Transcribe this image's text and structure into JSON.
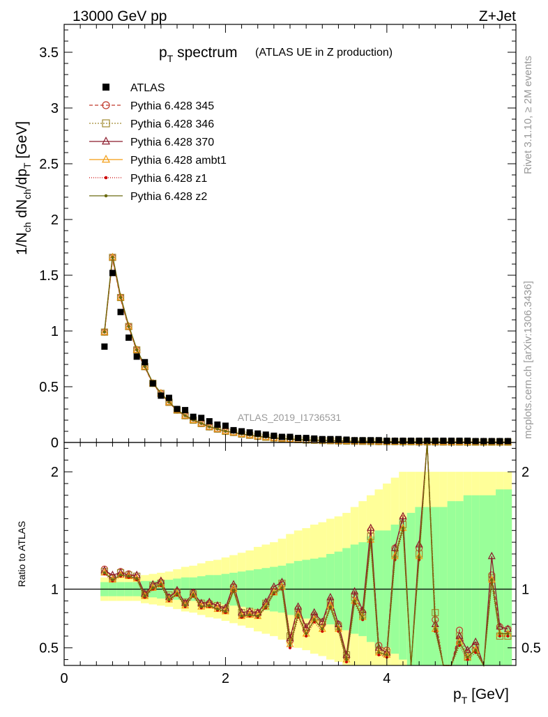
{
  "header": {
    "left": "13000 GeV pp",
    "right": "Z+Jet"
  },
  "side_labels": {
    "top": "Rivet 3.1.10, ≥ 2M events",
    "bottom": "mcplots.cern.ch [arXiv:1306.3436]"
  },
  "watermark": "ATLAS_2019_I1736531",
  "chart_data": [
    {
      "type": "scatter",
      "title_main": "p",
      "title_main_sub": "T",
      "title_main_rest": " spectrum",
      "title_note": "(ATLAS UE in Z production)",
      "ylabel": "1/N_ch dN_ch/dp_T [GeV]",
      "xlim": [
        0,
        5.6
      ],
      "ylim": [
        0,
        3.75
      ],
      "yticks": [
        "0",
        "0.5",
        "1",
        "1.5",
        "2",
        "2.5",
        "3",
        "3.5"
      ],
      "legend": [
        {
          "name": "ATLAS",
          "color": "#000000",
          "marker": "square",
          "dash": "none"
        },
        {
          "name": "Pythia 6.428 345",
          "color": "#c0392b",
          "marker": "circle",
          "dash": "5,3"
        },
        {
          "name": "Pythia 6.428 346",
          "color": "#a08a30",
          "marker": "square-open",
          "dash": "2,2"
        },
        {
          "name": "Pythia 6.428 370",
          "color": "#8b1a2b",
          "marker": "triangle",
          "dash": "none"
        },
        {
          "name": "Pythia 6.428 ambt1",
          "color": "#f39c12",
          "marker": "triangle",
          "dash": "none"
        },
        {
          "name": "Pythia 6.428 z1",
          "color": "#cc0000",
          "marker": "dot",
          "dash": "1,2"
        },
        {
          "name": "Pythia 6.428 z2",
          "color": "#6b6b10",
          "marker": "dot",
          "dash": "none"
        }
      ],
      "data": {
        "x": [
          0.5,
          0.6,
          0.7,
          0.8,
          0.9,
          1.0,
          1.1,
          1.2,
          1.3,
          1.4,
          1.5,
          1.6,
          1.7,
          1.8,
          1.9,
          2.0,
          2.1,
          2.2,
          2.3,
          2.4,
          2.5,
          2.6,
          2.7,
          2.8,
          2.9,
          3.0,
          3.1,
          3.2,
          3.3,
          3.4,
          3.5,
          3.6,
          3.7,
          3.8,
          3.9,
          4.0,
          4.1,
          4.2,
          4.3,
          4.4,
          4.5,
          4.6,
          4.7,
          4.8,
          4.9,
          5.0,
          5.1,
          5.2,
          5.3,
          5.4,
          5.5
        ],
        "atlas": [
          0.86,
          1.52,
          1.17,
          0.94,
          0.77,
          0.72,
          0.53,
          0.42,
          0.4,
          0.3,
          0.29,
          0.23,
          0.22,
          0.19,
          0.16,
          0.15,
          0.11,
          0.1,
          0.09,
          0.08,
          0.07,
          0.06,
          0.05,
          0.05,
          0.04,
          0.04,
          0.035,
          0.03,
          0.03,
          0.03,
          0.025,
          0.02,
          0.02,
          0.02,
          0.02,
          0.015,
          0.015,
          0.015,
          0.015,
          0.015,
          0.015,
          0.015,
          0.015,
          0.015,
          0.015,
          0.015,
          0.012,
          0.012,
          0.012,
          0.012,
          0.012
        ],
        "mc": [
          0.99,
          1.66,
          1.3,
          1.04,
          0.83,
          0.68,
          0.53,
          0.44,
          0.36,
          0.29,
          0.24,
          0.2,
          0.17,
          0.14,
          0.12,
          0.1,
          0.09,
          0.075,
          0.065,
          0.055,
          0.047,
          0.04,
          0.035,
          0.03,
          0.026,
          0.022,
          0.02,
          0.018,
          0.016,
          0.014,
          0.012,
          0.011,
          0.01,
          0.009,
          0.008,
          0.007,
          0.007,
          0.006,
          0.006,
          0.005,
          0.005,
          0.005,
          0.004,
          0.004,
          0.004,
          0.003,
          0.003,
          0.003,
          0.003,
          0.003,
          0.003
        ]
      }
    },
    {
      "type": "line",
      "ylabel": "Ratio to ATLAS",
      "xlabel": "p_T [GeV]",
      "xlim": [
        0,
        5.6
      ],
      "ylim": [
        0.35,
        2.25
      ],
      "xticks": [
        "0",
        "2",
        "4"
      ],
      "yticks": [
        "0.5",
        "1",
        "2"
      ],
      "x": [
        0.5,
        0.6,
        0.7,
        0.8,
        0.9,
        1.0,
        1.1,
        1.2,
        1.3,
        1.4,
        1.5,
        1.6,
        1.7,
        1.8,
        1.9,
        2.0,
        2.1,
        2.2,
        2.3,
        2.4,
        2.5,
        2.6,
        2.7,
        2.8,
        2.9,
        3.0,
        3.1,
        3.2,
        3.3,
        3.4,
        3.5,
        3.6,
        3.7,
        3.8,
        3.9,
        4.0,
        4.1,
        4.2,
        4.3,
        4.4,
        4.5,
        4.6,
        4.7,
        4.8,
        4.9,
        5.0,
        5.1,
        5.2,
        5.3,
        5.4,
        5.5
      ],
      "band_stat": [
        0.06,
        0.06,
        0.06,
        0.06,
        0.06,
        0.07,
        0.07,
        0.08,
        0.08,
        0.09,
        0.1,
        0.1,
        0.11,
        0.12,
        0.12,
        0.13,
        0.14,
        0.15,
        0.16,
        0.17,
        0.18,
        0.19,
        0.2,
        0.22,
        0.24,
        0.25,
        0.26,
        0.27,
        0.3,
        0.32,
        0.35,
        0.38,
        0.4,
        0.45,
        0.5,
        0.5,
        0.55,
        0.6,
        0.65,
        0.7,
        0.7,
        0.7,
        0.7,
        0.75,
        0.75,
        0.8,
        0.8,
        0.8,
        0.8,
        0.85,
        0.85
      ],
      "band_total": [
        0.1,
        0.1,
        0.1,
        0.1,
        0.1,
        0.12,
        0.13,
        0.14,
        0.15,
        0.17,
        0.19,
        0.2,
        0.22,
        0.24,
        0.25,
        0.27,
        0.29,
        0.31,
        0.33,
        0.36,
        0.38,
        0.4,
        0.43,
        0.47,
        0.5,
        0.52,
        0.55,
        0.57,
        0.6,
        0.62,
        0.65,
        0.7,
        0.75,
        0.8,
        0.85,
        0.9,
        0.95,
        1.0,
        1.0,
        1.0,
        1.0,
        1.0,
        1.0,
        1.0,
        1.0,
        1.0,
        1.0,
        1.0,
        1.0,
        1.0,
        1.0
      ],
      "series": [
        {
          "name": "Pythia 6.428 345",
          "values": [
            1.17,
            1.1,
            1.15,
            1.13,
            1.1,
            0.95,
            1.02,
            1.06,
            0.93,
            0.98,
            0.88,
            0.97,
            0.87,
            0.88,
            0.85,
            0.82,
            1.02,
            0.78,
            0.8,
            0.79,
            0.87,
            1.0,
            1.04,
            0.56,
            0.83,
            0.65,
            0.78,
            0.7,
            0.9,
            0.7,
            0.42,
            0.95,
            0.8,
            1.5,
            0.52,
            0.48,
            1.35,
            1.6,
            0.3,
            1.35,
            2.4,
            0.74,
            0.3,
            0.3,
            0.65,
            0.45,
            0.52,
            0.3,
            1.12,
            0.68,
            0.66
          ]
        },
        {
          "name": "Pythia 6.428 346",
          "values": [
            1.15,
            1.09,
            1.14,
            1.12,
            1.11,
            0.96,
            1.03,
            1.05,
            0.95,
            0.97,
            0.89,
            0.96,
            0.88,
            0.87,
            0.86,
            0.83,
            1.01,
            0.8,
            0.81,
            0.8,
            0.88,
            0.98,
            1.05,
            0.6,
            0.8,
            0.68,
            0.76,
            0.72,
            0.88,
            0.68,
            0.44,
            0.93,
            0.78,
            1.45,
            0.48,
            0.46,
            1.3,
            1.55,
            0.3,
            1.3,
            2.4,
            0.8,
            0.3,
            0.3,
            0.6,
            0.42,
            0.5,
            0.3,
            1.1,
            0.6,
            0.6
          ]
        },
        {
          "name": "Pythia 6.428 370",
          "values": [
            1.16,
            1.12,
            1.14,
            1.12,
            1.12,
            0.96,
            1.04,
            1.07,
            0.93,
            0.99,
            0.88,
            0.97,
            0.88,
            0.89,
            0.86,
            0.84,
            1.04,
            0.8,
            0.81,
            0.8,
            0.89,
            1.02,
            1.06,
            0.58,
            0.85,
            0.67,
            0.8,
            0.72,
            0.93,
            0.7,
            0.44,
            0.98,
            0.82,
            1.52,
            0.5,
            0.46,
            1.35,
            1.62,
            0.3,
            1.38,
            2.4,
            0.7,
            0.3,
            0.3,
            0.6,
            0.48,
            0.55,
            0.3,
            1.28,
            0.68,
            0.66
          ]
        },
        {
          "name": "Pythia 6.428 ambt1",
          "values": [
            1.14,
            1.08,
            1.12,
            1.11,
            1.09,
            0.94,
            1.01,
            1.04,
            0.91,
            0.96,
            0.86,
            0.95,
            0.85,
            0.86,
            0.83,
            0.81,
            1.0,
            0.77,
            0.78,
            0.77,
            0.85,
            0.97,
            1.02,
            0.53,
            0.78,
            0.62,
            0.74,
            0.66,
            0.86,
            0.66,
            0.4,
            0.9,
            0.76,
            1.42,
            0.46,
            0.44,
            1.28,
            1.52,
            0.3,
            1.28,
            2.4,
            0.66,
            0.3,
            0.3,
            0.55,
            0.42,
            0.48,
            0.3,
            1.08,
            0.62,
            0.62
          ]
        },
        {
          "name": "Pythia 6.428 z1",
          "values": [
            1.13,
            1.07,
            1.11,
            1.1,
            1.08,
            0.93,
            1.0,
            1.03,
            0.9,
            0.95,
            0.85,
            0.94,
            0.84,
            0.85,
            0.82,
            0.8,
            0.98,
            0.76,
            0.77,
            0.76,
            0.84,
            0.96,
            1.0,
            0.5,
            0.76,
            0.6,
            0.72,
            0.64,
            0.84,
            0.64,
            0.38,
            0.88,
            0.74,
            1.4,
            0.44,
            0.42,
            1.25,
            1.5,
            0.3,
            1.25,
            2.4,
            0.64,
            0.3,
            0.3,
            0.52,
            0.4,
            0.46,
            0.3,
            1.05,
            0.6,
            0.6
          ]
        },
        {
          "name": "Pythia 6.428 z2",
          "values": [
            1.14,
            1.08,
            1.12,
            1.11,
            1.09,
            0.94,
            1.01,
            1.04,
            0.91,
            0.96,
            0.86,
            0.95,
            0.85,
            0.86,
            0.83,
            0.81,
            0.99,
            0.77,
            0.78,
            0.77,
            0.85,
            0.97,
            1.01,
            0.52,
            0.78,
            0.62,
            0.74,
            0.66,
            0.85,
            0.66,
            0.4,
            0.9,
            0.75,
            1.42,
            0.46,
            0.44,
            1.27,
            1.52,
            0.3,
            1.27,
            2.4,
            0.66,
            0.3,
            0.3,
            0.55,
            0.42,
            0.48,
            0.3,
            1.08,
            0.62,
            0.62
          ]
        }
      ]
    }
  ]
}
